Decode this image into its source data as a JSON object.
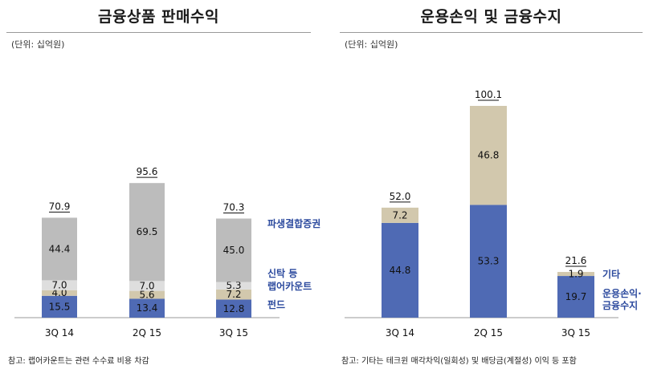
{
  "chart_data": [
    {
      "type": "bar",
      "stacked": true,
      "title": "금융상품 판매수익",
      "unit_label": "(단위: 십억원)",
      "categories": [
        "3Q 14",
        "2Q 15",
        "3Q 15"
      ],
      "series": [
        {
          "name": "펀드",
          "values": [
            15.5,
            13.4,
            12.8
          ],
          "color": "#4f6ab4"
        },
        {
          "name": "랩어카운트",
          "values": [
            4.0,
            5.6,
            7.2
          ],
          "color": "#d2c8ad"
        },
        {
          "name": "신탁 등",
          "values": [
            7.0,
            7.0,
            5.3
          ],
          "color": "#dedede"
        },
        {
          "name": "파생결합증권",
          "values": [
            44.4,
            69.5,
            45.0
          ],
          "color": "#bcbcbc"
        }
      ],
      "totals": [
        "70.9",
        "95.6",
        "70.3"
      ],
      "legend_placement": "right",
      "note": "참고: 랩어카운트는 관련 수수료 비용 차감"
    },
    {
      "type": "bar",
      "stacked": true,
      "title": "운용손익 및 금융수지",
      "unit_label": "(단위: 십억원)",
      "categories": [
        "3Q 14",
        "2Q 15",
        "3Q 15"
      ],
      "series": [
        {
          "name": "운용손익·\n금융수지",
          "values": [
            44.8,
            53.3,
            19.7
          ],
          "color": "#4f6ab4"
        },
        {
          "name": "기타",
          "values": [
            7.2,
            46.8,
            1.9
          ],
          "color": "#d2c8ad"
        }
      ],
      "totals": [
        "52.0",
        "100.1",
        "21.6"
      ],
      "legend_placement": "right",
      "note": "참고: 기타는 테크윈 매각차익(일회성) 및 배당금(계절성) 이익 등 포함"
    }
  ]
}
